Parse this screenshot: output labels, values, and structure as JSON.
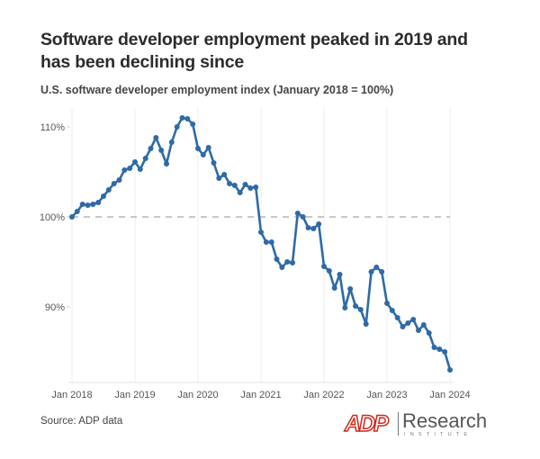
{
  "title": "Software developer employment peaked in 2019 and has been declining since",
  "subtitle": "U.S. software developer employment index (January 2018 = 100%)",
  "source": "Source: ADP data",
  "logo": {
    "brand": "ADP",
    "name": "Research",
    "tagline": "INSTITUTE",
    "brand_color": "#d0271d"
  },
  "chart_data": {
    "type": "line",
    "title": "U.S. software developer employment index (January 2018 = 100%)",
    "xlabel": "",
    "ylabel": "",
    "x_start": "Jan 2018",
    "x_end": "Jan 2024",
    "frequency": "monthly",
    "xticks": [
      "Jan 2018",
      "Jan 2019",
      "Jan 2020",
      "Jan 2021",
      "Jan 2022",
      "Jan 2023",
      "Jan 2024"
    ],
    "yticks": [
      {
        "value": 90,
        "label": "90%"
      },
      {
        "value": 100,
        "label": "100%"
      },
      {
        "value": 110,
        "label": "110%"
      }
    ],
    "ylim": [
      82,
      112
    ],
    "reference_line": 100,
    "grid": "vertical",
    "series_color": "#2e6aa6",
    "series": [
      {
        "name": "Software developer employment index",
        "values": [
          100.0,
          100.6,
          101.4,
          101.3,
          101.4,
          101.6,
          102.3,
          103.0,
          103.7,
          104.1,
          105.2,
          105.4,
          106.1,
          105.3,
          106.5,
          107.6,
          108.8,
          107.4,
          105.9,
          108.3,
          110.0,
          111.0,
          110.9,
          110.3,
          107.6,
          106.9,
          107.7,
          106.0,
          104.3,
          104.7,
          103.7,
          103.5,
          102.7,
          103.6,
          103.2,
          103.3,
          98.3,
          97.2,
          97.2,
          95.3,
          94.4,
          95.0,
          94.9,
          100.4,
          100.0,
          98.8,
          98.7,
          99.2,
          94.5,
          94.0,
          92.1,
          93.6,
          89.9,
          92.0,
          90.1,
          89.7,
          88.1,
          93.9,
          94.4,
          93.9,
          90.4,
          89.6,
          88.8,
          87.8,
          88.2,
          88.6,
          87.4,
          88.0,
          87.1,
          85.5,
          85.3,
          85.0,
          83.0
        ]
      }
    ]
  }
}
